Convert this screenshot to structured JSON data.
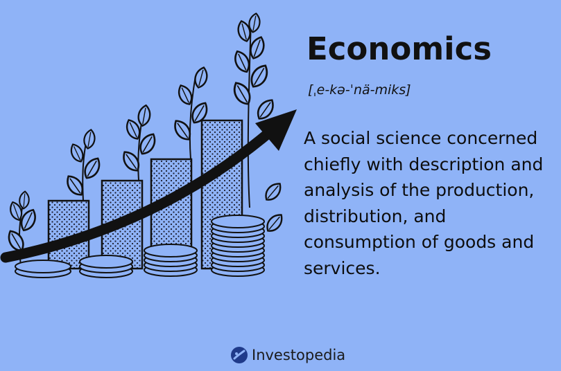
{
  "title": "Economics",
  "pronunciation": "[ˌe-kə-ˈnä-miks]",
  "definition": "A social science concerned chiefly with description and analysis of the production, distribution, and consumption of goods and services.",
  "brand": {
    "name": "Investopedia",
    "logo_icon": "investopedia-logo-icon"
  },
  "colors": {
    "background": "#8fb3f7",
    "text": "#111111",
    "brand_mark": "#1f3a8a"
  },
  "illustration": {
    "description_icon": "rising-bars-with-coins-and-arrow",
    "bar_count": 4,
    "coin_stack_count": 4
  }
}
